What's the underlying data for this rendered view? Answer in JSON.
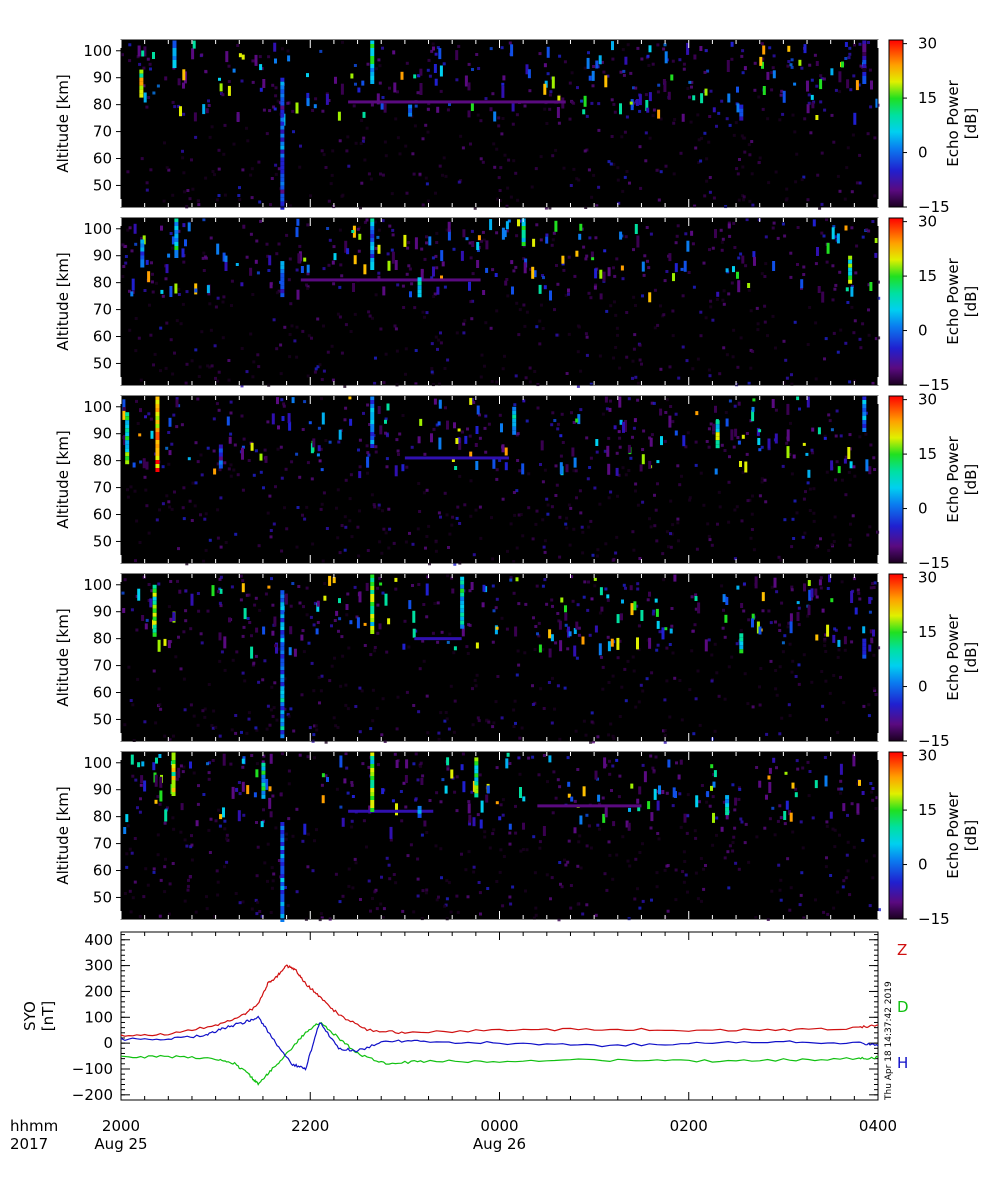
{
  "chart_data": [
    {
      "type": "heatmap",
      "panel": 1,
      "ylabel": "Altitude [km]",
      "yticks": [
        50,
        60,
        70,
        80,
        90,
        100
      ],
      "ylim": [
        42,
        104
      ],
      "xlim_hours": [
        0,
        8
      ],
      "colorbar": {
        "label": "Echo Power\n[dB]",
        "range": [
          -15,
          31
        ],
        "ticks": [
          "30",
          "15",
          "0",
          "−15"
        ]
      },
      "features": [
        {
          "t": 0.21,
          "alt": [
            83,
            93
          ],
          "db": 25
        },
        {
          "t": 0.56,
          "alt": [
            95,
            104
          ],
          "db": 10
        },
        {
          "t": 1.7,
          "alt": [
            42,
            90
          ],
          "db": 5
        },
        {
          "t": 2.65,
          "alt": [
            88,
            104
          ],
          "db": 15
        },
        {
          "t": 3.05,
          "alt": [
            76,
            80
          ],
          "db": 8
        },
        {
          "t": 6.55,
          "alt": [
            75,
            80
          ],
          "db": 5
        },
        {
          "t": 7.85,
          "alt": [
            88,
            104
          ],
          "db": 0
        }
      ],
      "layers": [
        {
          "t": [
            2.4,
            4.7
          ],
          "alt": 81,
          "db": -8
        }
      ]
    },
    {
      "type": "heatmap",
      "panel": 2,
      "ylabel": "Altitude [km]",
      "yticks": [
        50,
        60,
        70,
        80,
        90,
        100
      ],
      "ylim": [
        42,
        104
      ],
      "xlim_hours": [
        0,
        8
      ],
      "colorbar": {
        "label": "Echo Power\n[dB]",
        "range": [
          -15,
          31
        ],
        "ticks": [
          "30",
          "15",
          "0",
          "−15"
        ]
      },
      "features": [
        {
          "t": 0.22,
          "alt": [
            86,
            96
          ],
          "db": 10
        },
        {
          "t": 0.58,
          "alt": [
            90,
            104
          ],
          "db": 15
        },
        {
          "t": 1.7,
          "alt": [
            75,
            88
          ],
          "db": 5
        },
        {
          "t": 2.65,
          "alt": [
            85,
            104
          ],
          "db": 10
        },
        {
          "t": 3.15,
          "alt": [
            76,
            82
          ],
          "db": 12
        },
        {
          "t": 4.25,
          "alt": [
            95,
            104
          ],
          "db": 15
        },
        {
          "t": 7.7,
          "alt": [
            80,
            90
          ],
          "db": 20
        }
      ],
      "layers": [
        {
          "t": [
            1.9,
            3.8
          ],
          "alt": 81,
          "db": -8
        }
      ]
    },
    {
      "type": "heatmap",
      "panel": 3,
      "ylabel": "Altitude [km]",
      "yticks": [
        50,
        60,
        70,
        80,
        90,
        100
      ],
      "ylim": [
        42,
        104
      ],
      "xlim_hours": [
        0,
        8
      ],
      "colorbar": {
        "label": "Echo Power\n[dB]",
        "range": [
          -15,
          31
        ],
        "ticks": [
          "30",
          "15",
          "0",
          "−15"
        ]
      },
      "features": [
        {
          "t": 0.06,
          "alt": [
            80,
            98
          ],
          "db": 18
        },
        {
          "t": 0.38,
          "alt": [
            77,
            104
          ],
          "db": 30
        },
        {
          "t": 1.05,
          "alt": [
            78,
            86
          ],
          "db": 5
        },
        {
          "t": 2.65,
          "alt": [
            85,
            104
          ],
          "db": 10
        },
        {
          "t": 4.15,
          "alt": [
            90,
            100
          ],
          "db": 12
        },
        {
          "t": 6.3,
          "alt": [
            85,
            95
          ],
          "db": 20
        },
        {
          "t": 7.85,
          "alt": [
            92,
            104
          ],
          "db": 10
        }
      ],
      "layers": [
        {
          "t": [
            3.0,
            4.1
          ],
          "alt": 81,
          "db": -6
        }
      ]
    },
    {
      "type": "heatmap",
      "panel": 4,
      "ylabel": "Altitude [km]",
      "yticks": [
        50,
        60,
        70,
        80,
        90,
        100
      ],
      "ylim": [
        42,
        104
      ],
      "xlim_hours": [
        0,
        8
      ],
      "colorbar": {
        "label": "Echo Power\n[dB]",
        "range": [
          -15,
          31
        ],
        "ticks": [
          "30",
          "15",
          "0",
          "−15"
        ]
      },
      "features": [
        {
          "t": 0.35,
          "alt": [
            82,
            100
          ],
          "db": 20
        },
        {
          "t": 1.7,
          "alt": [
            44,
            98
          ],
          "db": 10
        },
        {
          "t": 2.65,
          "alt": [
            83,
            104
          ],
          "db": 20
        },
        {
          "t": 3.6,
          "alt": [
            85,
            103
          ],
          "db": 15
        },
        {
          "t": 6.55,
          "alt": [
            76,
            82
          ],
          "db": 15
        },
        {
          "t": 7.85,
          "alt": [
            74,
            80
          ],
          "db": 8
        }
      ],
      "layers": [
        {
          "t": [
            3.1,
            3.6
          ],
          "alt": 80,
          "db": -5
        }
      ]
    },
    {
      "type": "heatmap",
      "panel": 5,
      "ylabel": "Altitude [km]",
      "yticks": [
        50,
        60,
        70,
        80,
        90,
        100
      ],
      "ylim": [
        42,
        104
      ],
      "xlim_hours": [
        0,
        8
      ],
      "colorbar": {
        "label": "Echo Power\n[dB]",
        "range": [
          -15,
          31
        ],
        "ticks": [
          "30",
          "15",
          "0",
          "−15"
        ]
      },
      "features": [
        {
          "t": 0.55,
          "alt": [
            88,
            104
          ],
          "db": 25
        },
        {
          "t": 1.5,
          "alt": [
            88,
            100
          ],
          "db": 15
        },
        {
          "t": 1.7,
          "alt": [
            42,
            78
          ],
          "db": 8
        },
        {
          "t": 2.65,
          "alt": [
            82,
            104
          ],
          "db": 20
        },
        {
          "t": 3.15,
          "alt": [
            80,
            84
          ],
          "db": 8
        },
        {
          "t": 3.75,
          "alt": [
            88,
            102
          ],
          "db": 18
        },
        {
          "t": 6.4,
          "alt": [
            82,
            88
          ],
          "db": 15
        }
      ],
      "layers": [
        {
          "t": [
            2.4,
            3.3
          ],
          "alt": 82,
          "db": -5
        },
        {
          "t": [
            4.4,
            5.5
          ],
          "alt": 84,
          "db": -10
        }
      ]
    },
    {
      "type": "line",
      "panel": 6,
      "ylabel": "SYO\n[nT]",
      "ylim": [
        -220,
        430
      ],
      "yticks": [
        -200,
        -100,
        0,
        100,
        200,
        300,
        400
      ],
      "ytick_labels": [
        "−200",
        "−100",
        "0",
        "100",
        "200",
        "300",
        "400"
      ],
      "xlim_hours": [
        0,
        8
      ],
      "series": [
        {
          "name": "Z",
          "color": "#d01010",
          "x_hours": [
            0.0,
            0.5,
            1.0,
            1.3,
            1.45,
            1.55,
            1.65,
            1.75,
            1.85,
            1.95,
            2.1,
            2.3,
            2.6,
            3.0,
            4.0,
            5.0,
            6.0,
            7.0,
            7.8,
            8.0
          ],
          "values": [
            30,
            35,
            70,
            110,
            150,
            230,
            260,
            300,
            280,
            230,
            180,
            110,
            50,
            40,
            50,
            55,
            50,
            50,
            60,
            70
          ]
        },
        {
          "name": "D",
          "color": "#10c010",
          "x_hours": [
            0.0,
            0.5,
            1.0,
            1.2,
            1.35,
            1.45,
            1.6,
            1.8,
            1.95,
            2.1,
            2.3,
            2.5,
            2.8,
            3.2,
            4.0,
            5.0,
            6.0,
            7.0,
            7.8,
            8.0
          ],
          "values": [
            -55,
            -52,
            -60,
            -80,
            -120,
            -160,
            -100,
            -20,
            40,
            80,
            20,
            -40,
            -80,
            -70,
            -70,
            -65,
            -70,
            -65,
            -60,
            -55
          ]
        },
        {
          "name": "H",
          "color": "#1010c8",
          "x_hours": [
            0.0,
            0.5,
            0.9,
            1.1,
            1.3,
            1.45,
            1.6,
            1.8,
            1.95,
            2.1,
            2.3,
            2.5,
            2.8,
            3.2,
            4.0,
            5.0,
            6.0,
            7.0,
            7.8,
            8.0
          ],
          "values": [
            15,
            15,
            30,
            60,
            80,
            100,
            20,
            -80,
            -100,
            80,
            -20,
            -30,
            10,
            5,
            0,
            -10,
            0,
            5,
            0,
            -10
          ]
        }
      ]
    }
  ],
  "xaxis": {
    "tick_labels": [
      "2000",
      "2200",
      "0000",
      "0200",
      "0400"
    ],
    "date_labels": [
      "Aug 25",
      "",
      "Aug 26",
      "",
      ""
    ],
    "row_label_time": "hhmm",
    "row_label_year": "2017"
  },
  "timestamp": "Thu Apr 18 14:37:42 2019",
  "colors": {
    "background": "#000000",
    "frame": "#000000"
  }
}
